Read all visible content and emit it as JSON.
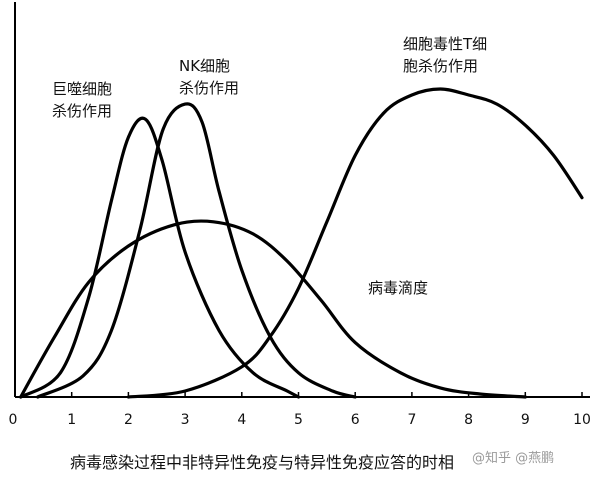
{
  "chart_data": {
    "type": "line",
    "title": "",
    "xlabel": "",
    "ylabel": "",
    "xlim": [
      0,
      10
    ],
    "ylim": [
      0,
      1
    ],
    "x_ticks": [
      "0",
      "1",
      "2",
      "3",
      "4",
      "5",
      "6",
      "7",
      "8",
      "9",
      "10"
    ],
    "grid": false,
    "series": [
      {
        "name": "巨噬细胞杀伤作用",
        "label_lines": [
          "巨噬细胞",
          "杀伤作用"
        ],
        "x": [
          0.1,
          0.8,
          1.3,
          1.7,
          2.0,
          2.3,
          2.6,
          3.0,
          3.6,
          4.2,
          4.8,
          5.0
        ],
        "y": [
          0.0,
          0.08,
          0.33,
          0.65,
          0.86,
          0.92,
          0.78,
          0.48,
          0.22,
          0.08,
          0.02,
          0.0
        ]
      },
      {
        "name": "NK细胞杀伤作用",
        "label_lines": [
          "NK细胞",
          "杀伤作用"
        ],
        "x": [
          0.4,
          1.2,
          1.7,
          2.2,
          2.6,
          3.0,
          3.3,
          3.6,
          4.0,
          4.5,
          5.0,
          5.6,
          6.0
        ],
        "y": [
          0.0,
          0.07,
          0.22,
          0.55,
          0.88,
          0.97,
          0.91,
          0.68,
          0.42,
          0.2,
          0.08,
          0.02,
          0.0
        ]
      },
      {
        "name": "细胞毒性T细胞杀伤作用",
        "label_lines": [
          "细胞毒性T细",
          "胞杀伤作用"
        ],
        "x": [
          2.0,
          3.0,
          4.0,
          4.5,
          5.0,
          5.5,
          6.0,
          6.5,
          7.0,
          7.5,
          8.0,
          8.5,
          9.0,
          9.5,
          10.0
        ],
        "y": [
          0.0,
          0.02,
          0.1,
          0.2,
          0.36,
          0.58,
          0.8,
          0.94,
          1.0,
          1.02,
          1.0,
          0.97,
          0.9,
          0.8,
          0.66
        ]
      },
      {
        "name": "病毒滴度",
        "label_lines": [
          "病毒滴度"
        ],
        "x": [
          0.1,
          0.7,
          1.3,
          2.0,
          2.8,
          3.5,
          4.2,
          4.8,
          5.4,
          6.0,
          6.8,
          7.5,
          8.2,
          9.0
        ],
        "y": [
          0.0,
          0.2,
          0.38,
          0.5,
          0.57,
          0.58,
          0.54,
          0.45,
          0.32,
          0.18,
          0.08,
          0.03,
          0.01,
          0.0
        ]
      }
    ],
    "caption": "病毒感染过程中非特异性免疫与特异性免疫应答的时相",
    "watermark": "@知乎 @燕鹏"
  }
}
